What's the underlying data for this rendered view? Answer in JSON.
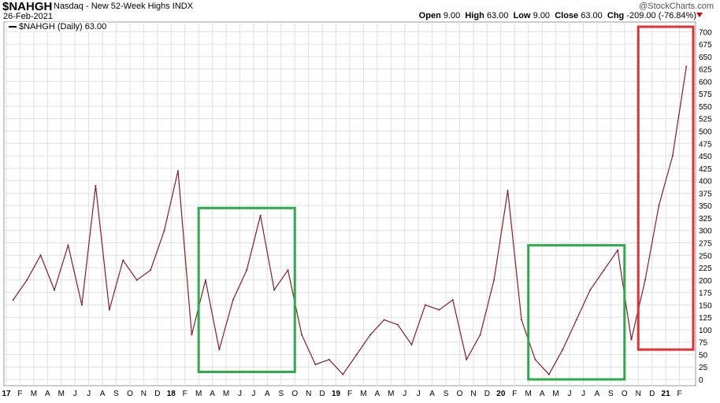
{
  "header": {
    "symbol": "$NAHGH",
    "description": "Nasdaq - New 52-Week Highs  INDX",
    "date": "26-Feb-2021",
    "logo": "@StockCharts.com",
    "ohlc": {
      "open_label": "Open",
      "open": "9.00",
      "high_label": "High",
      "high": "63.00",
      "low_label": "Low",
      "low": "9.00",
      "close_label": "Close",
      "close": "63.00",
      "chg_label": "Chg",
      "chg": "-209.00 (-76.84%)"
    }
  },
  "legend": {
    "label": "$NAHGH (Daily) 63.00",
    "color": "#8b1a2b"
  },
  "colors": {
    "line": "#8b1a2b",
    "grid": "#e0e0e0",
    "green_box": "#2eaa4a",
    "red_box": "#d33"
  },
  "chart_data": {
    "type": "line",
    "ylim": [
      0,
      710
    ],
    "y_ticks": [
      0,
      25,
      50,
      75,
      100,
      125,
      150,
      175,
      200,
      225,
      250,
      275,
      300,
      325,
      350,
      375,
      400,
      425,
      450,
      475,
      500,
      525,
      550,
      575,
      600,
      625,
      650,
      675,
      700
    ],
    "x_tick_labels": [
      "17",
      "F",
      "M",
      "A",
      "M",
      "J",
      "J",
      "A",
      "S",
      "O",
      "N",
      "D",
      "18",
      "F",
      "M",
      "A",
      "M",
      "J",
      "J",
      "A",
      "S",
      "O",
      "N",
      "D",
      "19",
      "F",
      "M",
      "A",
      "M",
      "J",
      "J",
      "A",
      "S",
      "O",
      "N",
      "D",
      "20",
      "F",
      "M",
      "A",
      "M",
      "J",
      "J",
      "A",
      "S",
      "O",
      "N",
      "D",
      "21",
      "F"
    ],
    "x": [
      "2017-01",
      "2017-02",
      "2017-03",
      "2017-04",
      "2017-05",
      "2017-06",
      "2017-07",
      "2017-08",
      "2017-09",
      "2017-10",
      "2017-11",
      "2017-12",
      "2018-01",
      "2018-02",
      "2018-03",
      "2018-04",
      "2018-05",
      "2018-06",
      "2018-07",
      "2018-08",
      "2018-09",
      "2018-10",
      "2018-11",
      "2018-12",
      "2019-01",
      "2019-02",
      "2019-03",
      "2019-04",
      "2019-05",
      "2019-06",
      "2019-07",
      "2019-08",
      "2019-09",
      "2019-10",
      "2019-11",
      "2019-12",
      "2020-01",
      "2020-02",
      "2020-03",
      "2020-04",
      "2020-05",
      "2020-06",
      "2020-07",
      "2020-08",
      "2020-09",
      "2020-10",
      "2020-11",
      "2020-12",
      "2021-01",
      "2021-02"
    ],
    "series": [
      {
        "values": [
          160,
          200,
          250,
          180,
          270,
          150,
          390,
          140,
          240,
          200,
          220,
          300,
          420,
          90,
          200,
          60,
          160,
          220,
          330,
          180,
          220,
          90,
          30,
          40,
          10,
          50,
          90,
          120,
          110,
          70,
          150,
          140,
          160,
          40,
          90,
          200,
          380,
          120,
          40,
          10,
          60,
          120,
          180,
          220,
          260,
          80,
          200,
          350,
          450,
          630
        ]
      }
    ],
    "annotations": [
      {
        "type": "box",
        "color": "green",
        "x_range": [
          "2018-03",
          "2018-10"
        ],
        "y_range": [
          15,
          345
        ]
      },
      {
        "type": "box",
        "color": "green",
        "x_range": [
          "2020-03",
          "2020-10"
        ],
        "y_range": [
          0,
          270
        ]
      },
      {
        "type": "box",
        "color": "red",
        "x_range": [
          "2020-11",
          "2021-03"
        ],
        "y_range": [
          60,
          710
        ]
      }
    ]
  }
}
